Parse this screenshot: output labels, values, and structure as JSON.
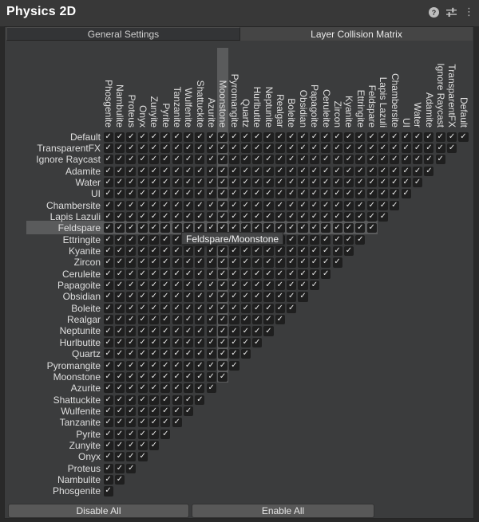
{
  "window": {
    "title": "Physics 2D"
  },
  "titlebar_icons": {
    "help": "help-icon",
    "presets": "presets-icon",
    "more": "more-icon"
  },
  "tabs": {
    "general": {
      "label": "General Settings",
      "selected": false
    },
    "matrix": {
      "label": "Layer Collision Matrix",
      "selected": true
    }
  },
  "layers_top_to_bottom": [
    "Default",
    "TransparentFX",
    "Ignore Raycast",
    "Adamite",
    "Water",
    "UI",
    "Chambersite",
    "Lapis Lazuli",
    "Feldspare",
    "Ettringite",
    "Kyanite",
    "Zircon",
    "Ceruleite",
    "Papagoite",
    "Obsidian",
    "Boleite",
    "Realgar",
    "Neptunite",
    "Hurlbutite",
    "Quartz",
    "Pyromangite",
    "Moonstone",
    "Azurite",
    "Shattuckite",
    "Wulfenite",
    "Tanzanite",
    "Pyrite",
    "Zunyite",
    "Onyx",
    "Proteus",
    "Nambulite",
    "Phosgenite"
  ],
  "matrix": {
    "shape": "lower-triangular",
    "column_order": "reverse of layers_top_to_bottom (left to right: Phosgenite ... Default)",
    "all_checked": true,
    "hover": {
      "row": "Feldspare",
      "column": "Moonstone"
    },
    "tooltip": "Feldspare/Moonstone"
  },
  "footer": {
    "disable_all": "Disable All",
    "enable_all": "Enable All"
  },
  "colors": {
    "panel_bg": "#3b3c3d",
    "outer_bg": "#292929",
    "tab_unselected_bg": "#333436",
    "tab_selected_bg": "#454545",
    "checkbox_bg": "#1f1f1f",
    "checkmark": "#e9e9e9",
    "hover_highlight": "rgba(255,255,255,0.16)",
    "button_bg": "#585858",
    "text": "#dfdfdf"
  }
}
